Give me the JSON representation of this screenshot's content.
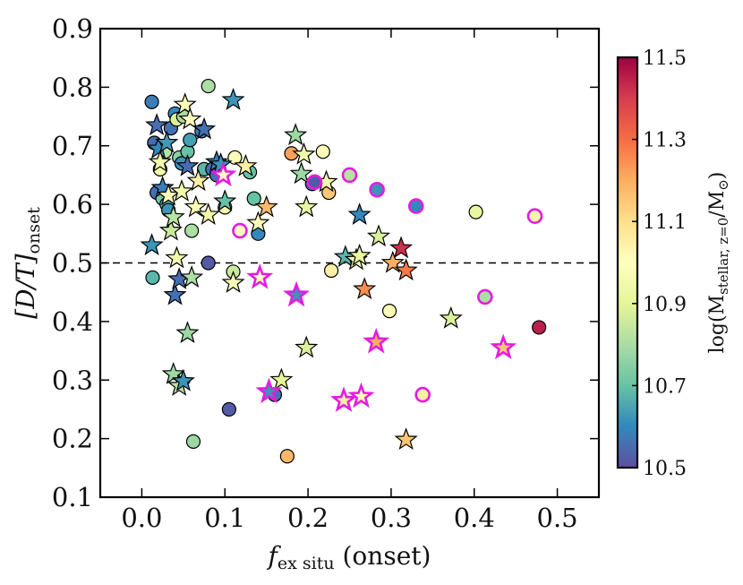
{
  "chart_data": {
    "type": "scatter",
    "title": "",
    "xlabel": "f_ex situ (onset)",
    "xlabel_main": "f",
    "xlabel_sub": "ex situ",
    "xlabel_suffix": "(onset)",
    "ylabel": "[D/T]_onset",
    "ylabel_main": "[D/T]",
    "ylabel_sub": "onset",
    "xlim": [
      -0.05,
      0.55
    ],
    "ylim": [
      0.1,
      0.9
    ],
    "xticks": [
      "0.0",
      "0.1",
      "0.2",
      "0.3",
      "0.4",
      "0.5"
    ],
    "yticks": [
      "0.1",
      "0.2",
      "0.3",
      "0.4",
      "0.5",
      "0.6",
      "0.7",
      "0.8",
      "0.9"
    ],
    "hline": 0.5,
    "colorbar": {
      "label": "log(M_stellar,z=0/M_sun)",
      "label_main": "log(M",
      "label_sub": "stellar, z=0",
      "label_end": "/M",
      "label_sun": "⊙",
      "label_close": ")",
      "min": 10.5,
      "max": 11.5,
      "ticks": [
        "10.5",
        "10.7",
        "10.9",
        "11.1",
        "11.3",
        "11.5"
      ]
    },
    "series": [
      {
        "name": "circles",
        "marker": "circle",
        "points": [
          {
            "x": 0.012,
            "y": 0.775,
            "m": 10.58
          },
          {
            "x": 0.015,
            "y": 0.705,
            "m": 10.55
          },
          {
            "x": 0.013,
            "y": 0.475,
            "m": 10.68
          },
          {
            "x": 0.018,
            "y": 0.62,
            "m": 10.56
          },
          {
            "x": 0.022,
            "y": 0.66,
            "m": 10.95
          },
          {
            "x": 0.025,
            "y": 0.61,
            "m": 10.72
          },
          {
            "x": 0.028,
            "y": 0.69,
            "m": 10.82
          },
          {
            "x": 0.03,
            "y": 0.6,
            "m": 10.66
          },
          {
            "x": 0.032,
            "y": 0.59,
            "m": 10.62
          },
          {
            "x": 0.035,
            "y": 0.73,
            "m": 10.56
          },
          {
            "x": 0.04,
            "y": 0.755,
            "m": 10.6
          },
          {
            "x": 0.042,
            "y": 0.745,
            "m": 10.88
          },
          {
            "x": 0.045,
            "y": 0.68,
            "m": 10.75
          },
          {
            "x": 0.048,
            "y": 0.67,
            "m": 10.62
          },
          {
            "x": 0.05,
            "y": 0.75,
            "m": 10.8
          },
          {
            "x": 0.055,
            "y": 0.69,
            "m": 10.7
          },
          {
            "x": 0.058,
            "y": 0.71,
            "m": 10.64
          },
          {
            "x": 0.06,
            "y": 0.555,
            "m": 10.8
          },
          {
            "x": 0.062,
            "y": 0.195,
            "m": 10.78
          },
          {
            "x": 0.072,
            "y": 0.725,
            "m": 10.58
          },
          {
            "x": 0.075,
            "y": 0.66,
            "m": 10.68
          },
          {
            "x": 0.08,
            "y": 0.5,
            "m": 10.52
          },
          {
            "x": 0.08,
            "y": 0.802,
            "m": 10.8
          },
          {
            "x": 0.085,
            "y": 0.66,
            "m": 10.55
          },
          {
            "x": 0.09,
            "y": 0.65,
            "m": 10.56
          },
          {
            "x": 0.1,
            "y": 0.595,
            "m": 10.95
          },
          {
            "x": 0.105,
            "y": 0.25,
            "m": 10.52
          },
          {
            "x": 0.11,
            "y": 0.485,
            "m": 10.85
          },
          {
            "x": 0.112,
            "y": 0.68,
            "m": 10.98
          },
          {
            "x": 0.13,
            "y": 0.655,
            "m": 10.7
          },
          {
            "x": 0.135,
            "y": 0.61,
            "m": 10.7
          },
          {
            "x": 0.14,
            "y": 0.55,
            "m": 10.6
          },
          {
            "x": 0.16,
            "y": 0.275,
            "m": 10.56
          },
          {
            "x": 0.175,
            "y": 0.17,
            "m": 11.18
          },
          {
            "x": 0.18,
            "y": 0.687,
            "m": 11.22
          },
          {
            "x": 0.205,
            "y": 0.635,
            "m": 10.55
          },
          {
            "x": 0.218,
            "y": 0.69,
            "m": 10.98
          },
          {
            "x": 0.225,
            "y": 0.62,
            "m": 11.15
          },
          {
            "x": 0.228,
            "y": 0.487,
            "m": 11.05
          },
          {
            "x": 0.298,
            "y": 0.418,
            "m": 10.98
          },
          {
            "x": 0.402,
            "y": 0.587,
            "m": 10.92
          },
          {
            "x": 0.478,
            "y": 0.39,
            "m": 11.45
          }
        ]
      },
      {
        "name": "stars",
        "marker": "star",
        "points": [
          {
            "x": 0.012,
            "y": 0.53,
            "m": 10.62
          },
          {
            "x": 0.018,
            "y": 0.735,
            "m": 10.55
          },
          {
            "x": 0.02,
            "y": 0.695,
            "m": 10.6
          },
          {
            "x": 0.022,
            "y": 0.672,
            "m": 10.95
          },
          {
            "x": 0.025,
            "y": 0.628,
            "m": 10.58
          },
          {
            "x": 0.03,
            "y": 0.705,
            "m": 10.63
          },
          {
            "x": 0.032,
            "y": 0.615,
            "m": 10.98
          },
          {
            "x": 0.035,
            "y": 0.555,
            "m": 10.85
          },
          {
            "x": 0.038,
            "y": 0.578,
            "m": 10.82
          },
          {
            "x": 0.038,
            "y": 0.31,
            "m": 10.78
          },
          {
            "x": 0.04,
            "y": 0.445,
            "m": 10.56
          },
          {
            "x": 0.042,
            "y": 0.508,
            "m": 10.95
          },
          {
            "x": 0.045,
            "y": 0.472,
            "m": 10.55
          },
          {
            "x": 0.045,
            "y": 0.29,
            "m": 10.82
          },
          {
            "x": 0.048,
            "y": 0.622,
            "m": 10.95
          },
          {
            "x": 0.05,
            "y": 0.298,
            "m": 10.62
          },
          {
            "x": 0.052,
            "y": 0.77,
            "m": 10.98
          },
          {
            "x": 0.055,
            "y": 0.665,
            "m": 10.55
          },
          {
            "x": 0.055,
            "y": 0.38,
            "m": 10.78
          },
          {
            "x": 0.058,
            "y": 0.745,
            "m": 11.0
          },
          {
            "x": 0.06,
            "y": 0.475,
            "m": 10.8
          },
          {
            "x": 0.065,
            "y": 0.595,
            "m": 10.98
          },
          {
            "x": 0.068,
            "y": 0.64,
            "m": 11.05
          },
          {
            "x": 0.075,
            "y": 0.728,
            "m": 10.56
          },
          {
            "x": 0.08,
            "y": 0.582,
            "m": 10.95
          },
          {
            "x": 0.09,
            "y": 0.672,
            "m": 10.58
          },
          {
            "x": 0.095,
            "y": 0.668,
            "m": 10.62
          },
          {
            "x": 0.1,
            "y": 0.605,
            "m": 10.7
          },
          {
            "x": 0.11,
            "y": 0.778,
            "m": 10.62
          },
          {
            "x": 0.11,
            "y": 0.466,
            "m": 10.98
          },
          {
            "x": 0.125,
            "y": 0.665,
            "m": 11.05
          },
          {
            "x": 0.14,
            "y": 0.568,
            "m": 10.98
          },
          {
            "x": 0.15,
            "y": 0.595,
            "m": 11.18
          },
          {
            "x": 0.168,
            "y": 0.3,
            "m": 10.9
          },
          {
            "x": 0.185,
            "y": 0.718,
            "m": 10.78
          },
          {
            "x": 0.192,
            "y": 0.652,
            "m": 10.78
          },
          {
            "x": 0.195,
            "y": 0.685,
            "m": 10.95
          },
          {
            "x": 0.198,
            "y": 0.595,
            "m": 10.92
          },
          {
            "x": 0.198,
            "y": 0.355,
            "m": 10.88
          },
          {
            "x": 0.222,
            "y": 0.638,
            "m": 10.95
          },
          {
            "x": 0.245,
            "y": 0.51,
            "m": 10.68
          },
          {
            "x": 0.258,
            "y": 0.505,
            "m": 10.98
          },
          {
            "x": 0.262,
            "y": 0.512,
            "m": 10.92
          },
          {
            "x": 0.262,
            "y": 0.582,
            "m": 10.6
          },
          {
            "x": 0.268,
            "y": 0.455,
            "m": 11.25
          },
          {
            "x": 0.285,
            "y": 0.545,
            "m": 10.88
          },
          {
            "x": 0.302,
            "y": 0.5,
            "m": 11.2
          },
          {
            "x": 0.312,
            "y": 0.525,
            "m": 11.42
          },
          {
            "x": 0.318,
            "y": 0.487,
            "m": 11.28
          },
          {
            "x": 0.318,
            "y": 0.198,
            "m": 11.15
          },
          {
            "x": 0.372,
            "y": 0.405,
            "m": 10.88
          }
        ]
      },
      {
        "name": "highlighted-circles",
        "marker": "circle",
        "outline": "#e31ce0",
        "points": [
          {
            "x": 0.118,
            "y": 0.555,
            "m": 11.0
          },
          {
            "x": 0.208,
            "y": 0.638,
            "m": 10.52
          },
          {
            "x": 0.25,
            "y": 0.65,
            "m": 10.82
          },
          {
            "x": 0.283,
            "y": 0.625,
            "m": 10.62
          },
          {
            "x": 0.33,
            "y": 0.597,
            "m": 10.6
          },
          {
            "x": 0.338,
            "y": 0.275,
            "m": 11.05
          },
          {
            "x": 0.413,
            "y": 0.442,
            "m": 10.8
          },
          {
            "x": 0.473,
            "y": 0.58,
            "m": 10.95
          }
        ]
      },
      {
        "name": "highlighted-stars",
        "marker": "star",
        "outline": "#e31ce0",
        "points": [
          {
            "x": 0.098,
            "y": 0.65,
            "m": 11.0
          },
          {
            "x": 0.142,
            "y": 0.475,
            "m": 11.0
          },
          {
            "x": 0.153,
            "y": 0.28,
            "m": 10.62
          },
          {
            "x": 0.186,
            "y": 0.445,
            "m": 10.62
          },
          {
            "x": 0.243,
            "y": 0.265,
            "m": 11.05
          },
          {
            "x": 0.264,
            "y": 0.272,
            "m": 11.0
          },
          {
            "x": 0.282,
            "y": 0.365,
            "m": 11.2
          },
          {
            "x": 0.435,
            "y": 0.355,
            "m": 11.15
          }
        ]
      }
    ]
  }
}
